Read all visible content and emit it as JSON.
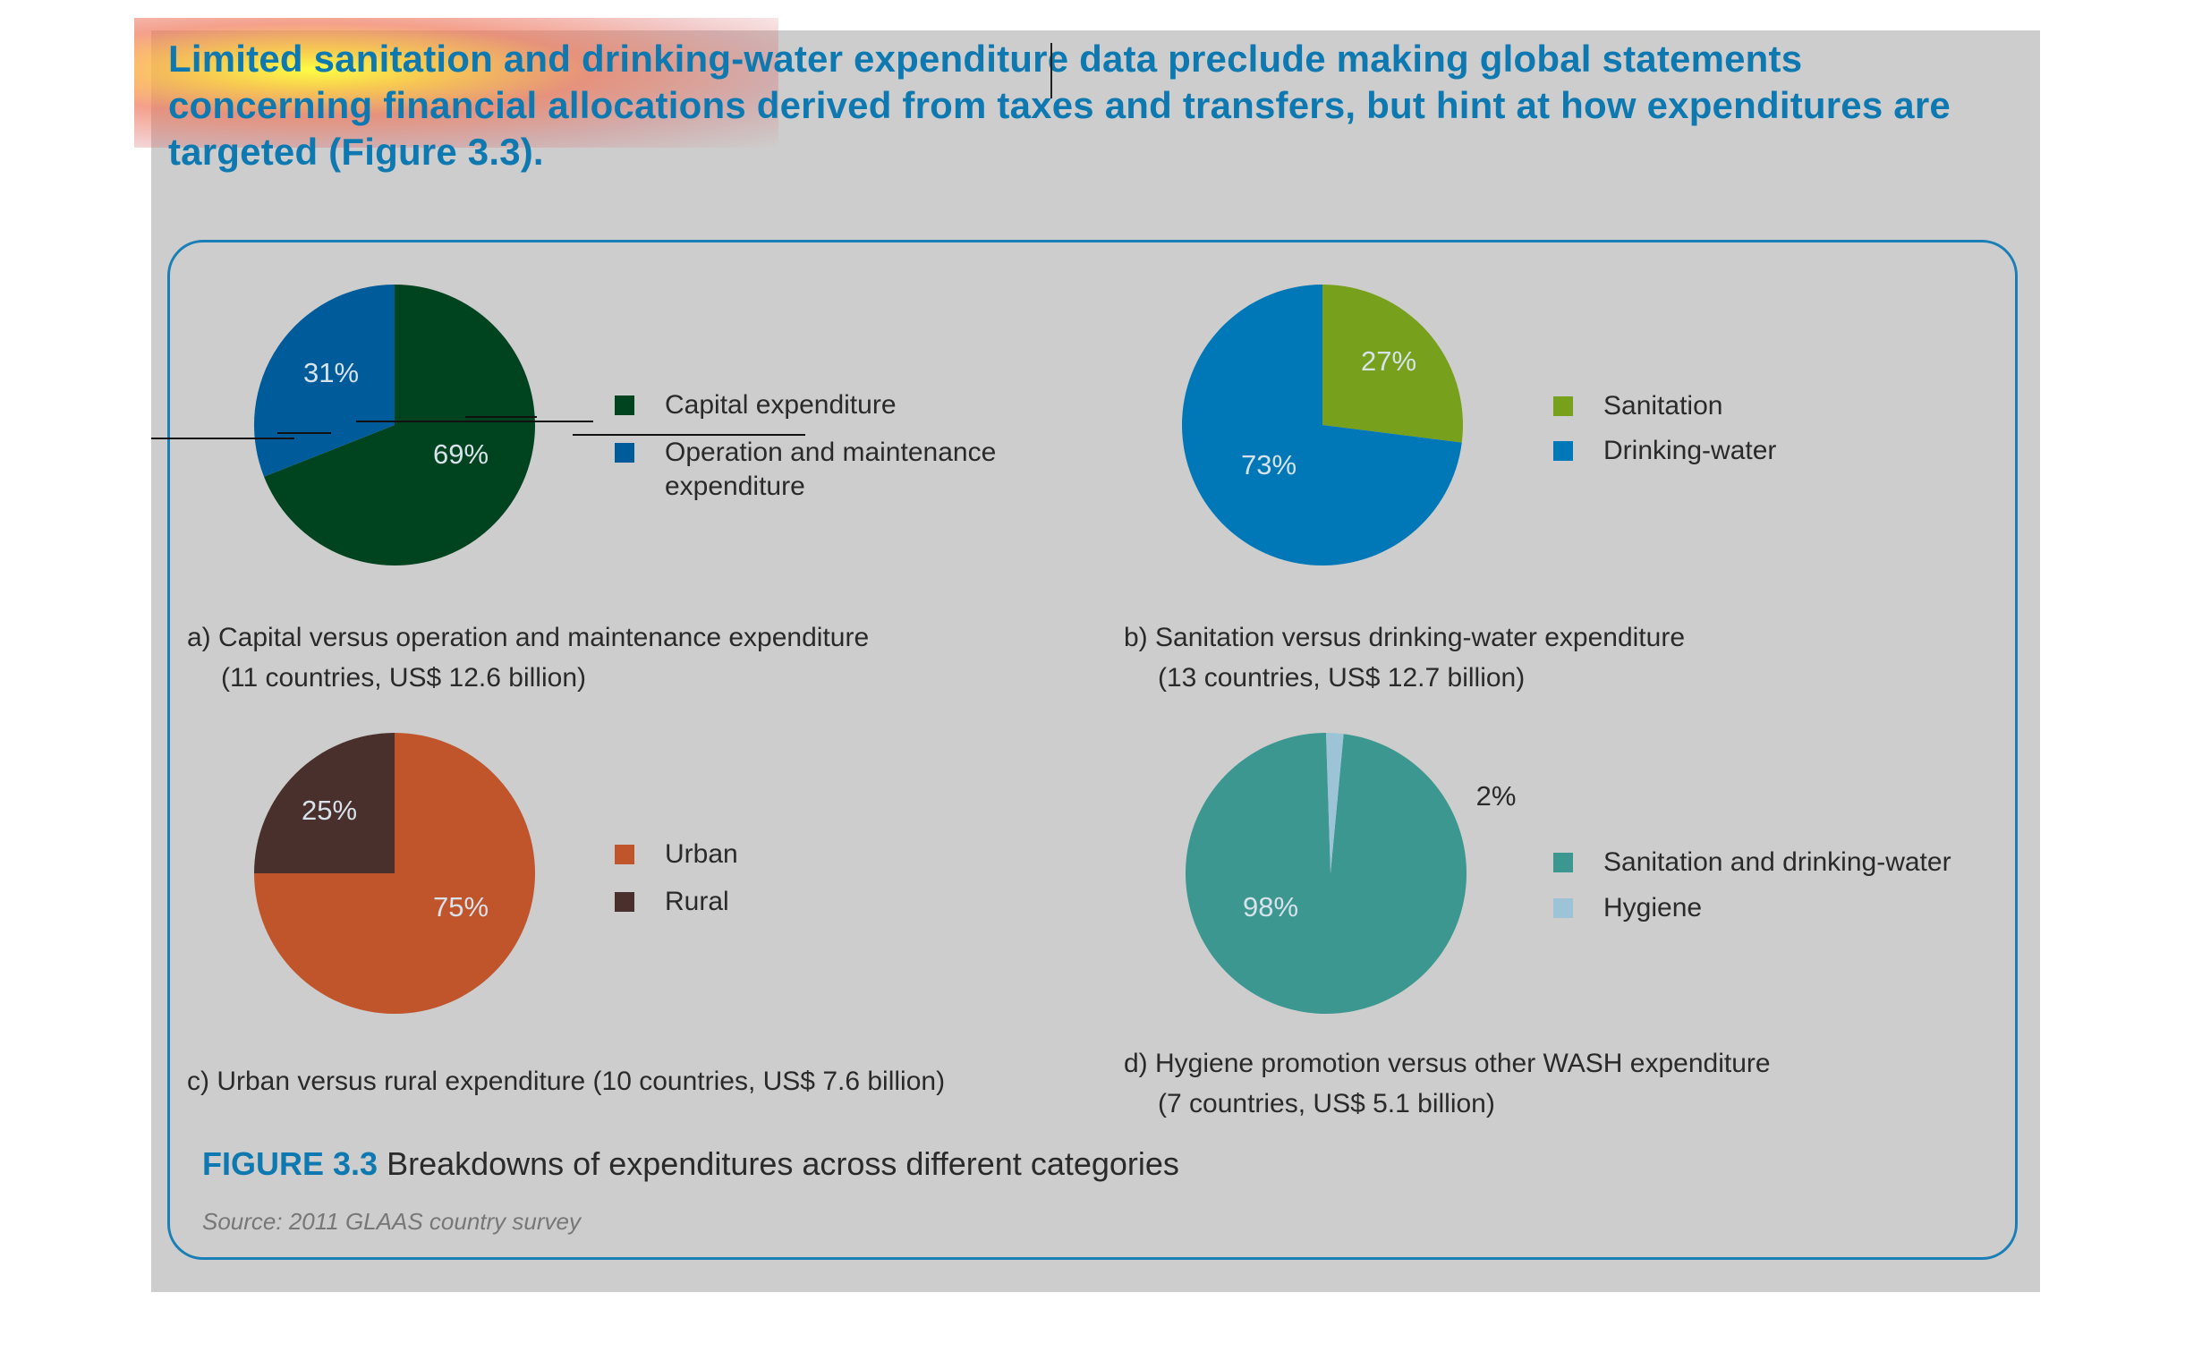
{
  "headline": "Limited sanitation and drinking-water expenditure data preclude making global statements concerning financial allocations derived from taxes and transfers, but hint at how expenditures are targeted (Figure 3.3).",
  "colors": {
    "panel_bg": "#cdcdcd",
    "accent_blue": "#0d79b0",
    "capital": "#00441f",
    "om": "#005b9a",
    "sanitation": "#77a11c",
    "drinking_water": "#0078b8",
    "urban": "#c0542a",
    "rural": "#4a302c",
    "wash": "#3c9790",
    "hygiene": "#9cc4d6"
  },
  "chart_data": [
    {
      "type": "pie",
      "series": [
        {
          "name": "Capital expenditure",
          "value": 69,
          "label": "69%",
          "color": "#00441f"
        },
        {
          "name": "Operation and maintenance expenditure",
          "value": 31,
          "label": "31%",
          "color": "#005b9a"
        }
      ],
      "legend": [
        {
          "text": "Capital expenditure",
          "color": "#00441f"
        },
        {
          "text": "Operation and maintenance expenditure",
          "color": "#005b9a"
        }
      ],
      "caption": [
        "a) Capital versus operation and maintenance expenditure",
        "(11 countries, US$ 12.6 billion)"
      ]
    },
    {
      "type": "pie",
      "series": [
        {
          "name": "Sanitation",
          "value": 27,
          "label": "27%",
          "color": "#77a11c"
        },
        {
          "name": "Drinking-water",
          "value": 73,
          "label": "73%",
          "color": "#0078b8"
        }
      ],
      "legend": [
        {
          "text": "Sanitation",
          "color": "#77a11c"
        },
        {
          "text": "Drinking-water",
          "color": "#0078b8"
        }
      ],
      "caption": [
        "b) Sanitation versus drinking-water expenditure",
        "(13 countries, US$ 12.7 billion)"
      ]
    },
    {
      "type": "pie",
      "series": [
        {
          "name": "Urban",
          "value": 75,
          "label": "75%",
          "color": "#c0542a"
        },
        {
          "name": "Rural",
          "value": 25,
          "label": "25%",
          "color": "#4a302c"
        }
      ],
      "legend": [
        {
          "text": "Urban",
          "color": "#c0542a"
        },
        {
          "text": "Rural",
          "color": "#4a302c"
        }
      ],
      "caption": [
        "c) Urban versus rural expenditure (10 countries, US$ 7.6 billion)"
      ]
    },
    {
      "type": "pie",
      "series": [
        {
          "name": "Sanitation and drinking-water",
          "value": 98,
          "label": "98%",
          "color": "#3c9790"
        },
        {
          "name": "Hygiene",
          "value": 2,
          "label": "2%",
          "color": "#9cc4d6"
        }
      ],
      "legend": [
        {
          "text": "Sanitation and drinking-water",
          "color": "#3c9790"
        },
        {
          "text": "Hygiene",
          "color": "#9cc4d6"
        }
      ],
      "caption": [
        "d) Hygiene promotion versus other WASH expenditure",
        "(7 countries, US$ 5.1 billion)"
      ]
    }
  ],
  "figure": {
    "label": "FIGURE 3.3",
    "title": "Breakdowns of expenditures across different categories",
    "source": "Source: 2011 GLAAS country survey"
  }
}
